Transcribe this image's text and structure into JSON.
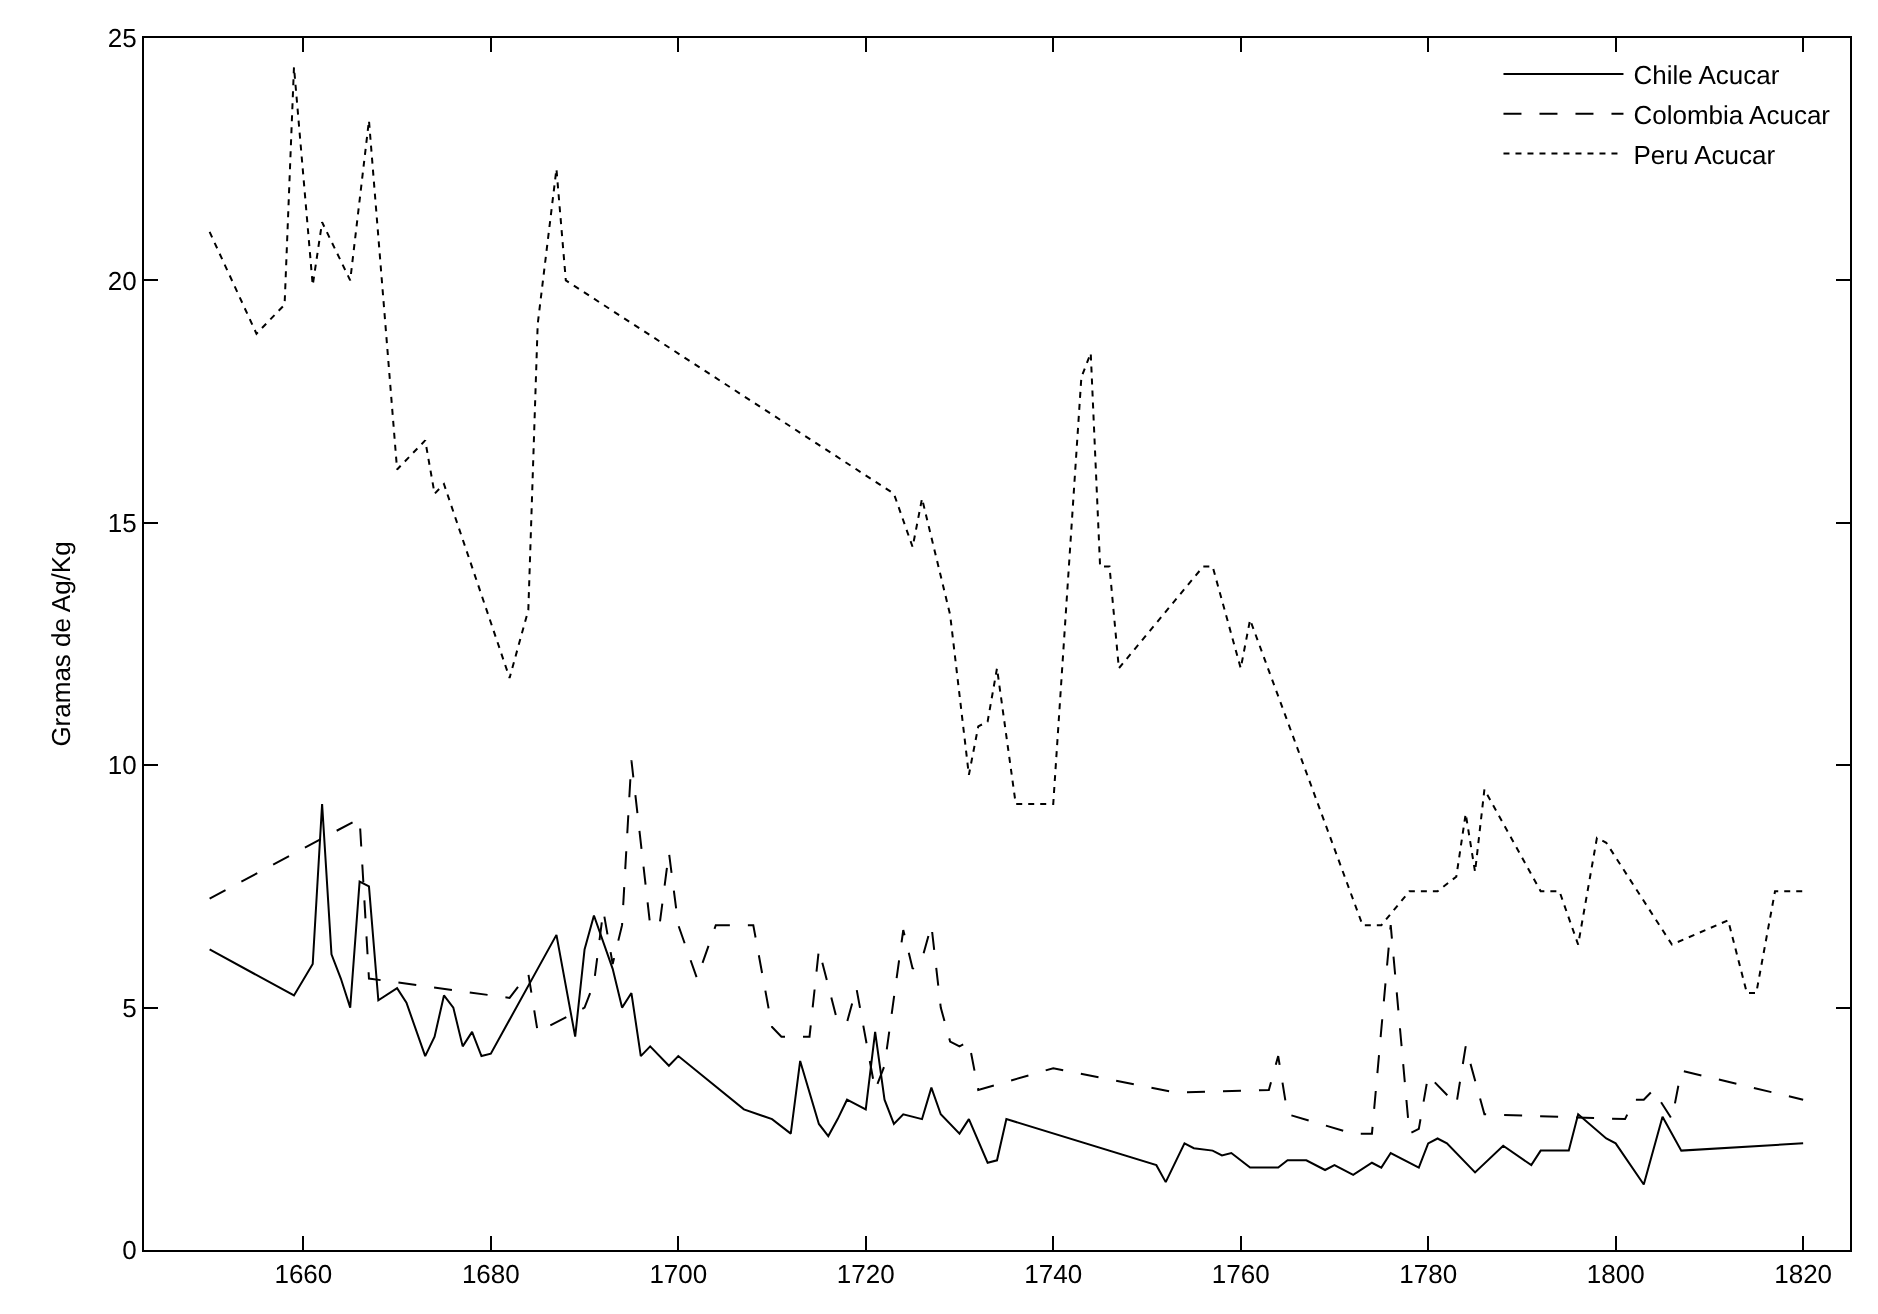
{
  "chart_data": {
    "type": "line",
    "ylabel": "Gramas de Ag/Kg",
    "xlim": [
      1643,
      1825
    ],
    "xticks": [
      1660,
      1680,
      1700,
      1720,
      1740,
      1760,
      1780,
      1800,
      1820
    ],
    "ylim": [
      0,
      25
    ],
    "yticks": [
      0,
      5,
      10,
      15,
      20,
      25
    ],
    "grid": false,
    "legend": "top right",
    "marker": "none",
    "series": [
      {
        "name": "Chile Acucar",
        "color": "#000000",
        "line_style": "solid",
        "x": [
          1650,
          1659,
          1661,
          1662,
          1663,
          1664,
          1665,
          1666,
          1667,
          1668,
          1670,
          1671,
          1673,
          1674,
          1675,
          1676,
          1677,
          1678,
          1679,
          1680,
          1687,
          1689,
          1690,
          1691,
          1693,
          1694,
          1695,
          1696,
          1697,
          1699,
          1700,
          1707,
          1710,
          1712,
          1713,
          1715,
          1716,
          1717,
          1718,
          1720,
          1721,
          1722,
          1723,
          1724,
          1726,
          1727,
          1728,
          1730,
          1731,
          1733,
          1734,
          1735,
          1751,
          1752,
          1754,
          1755,
          1757,
          1758,
          1759,
          1761,
          1764,
          1765,
          1767,
          1769,
          1770,
          1772,
          1774,
          1775,
          1776,
          1779,
          1780,
          1781,
          1782,
          1785,
          1788,
          1791,
          1792,
          1795,
          1796,
          1799,
          1800,
          1803,
          1805,
          1807,
          1820
        ],
        "values": [
          6.2,
          5.25,
          5.9,
          9.2,
          6.1,
          5.6,
          5.0,
          7.6,
          7.5,
          5.15,
          5.4,
          5.1,
          4.0,
          4.4,
          5.25,
          5.0,
          4.2,
          4.5,
          4.0,
          4.05,
          6.5,
          4.4,
          6.2,
          6.9,
          5.8,
          5.0,
          5.3,
          4.0,
          4.2,
          3.8,
          4.0,
          2.9,
          2.7,
          2.4,
          3.9,
          2.6,
          2.35,
          2.7,
          3.1,
          2.9,
          4.5,
          3.1,
          2.6,
          2.8,
          2.7,
          3.35,
          2.8,
          2.4,
          2.7,
          1.8,
          1.85,
          2.7,
          1.75,
          1.4,
          2.2,
          2.1,
          2.05,
          1.95,
          2.0,
          1.7,
          1.7,
          1.85,
          1.85,
          1.65,
          1.75,
          1.55,
          1.8,
          1.7,
          2.0,
          1.7,
          2.2,
          2.3,
          2.2,
          1.6,
          2.15,
          1.75,
          2.05,
          2.05,
          2.8,
          2.3,
          2.2,
          1.35,
          2.75,
          2.05,
          2.2
        ]
      },
      {
        "name": "Colombia Acucar",
        "color": "#000000",
        "line_style": "dashed",
        "x": [
          1650,
          1666,
          1667,
          1682,
          1684,
          1685,
          1690,
          1691,
          1692,
          1693,
          1694,
          1695,
          1697,
          1698,
          1699,
          1700,
          1702,
          1704,
          1708,
          1710,
          1711,
          1714,
          1715,
          1717,
          1718,
          1719,
          1721,
          1722,
          1724,
          1725,
          1726,
          1727,
          1728,
          1729,
          1730,
          1731,
          1732,
          1740,
          1753,
          1763,
          1764,
          1765,
          1772,
          1774,
          1776,
          1778,
          1779,
          1780,
          1783,
          1784,
          1786,
          1801,
          1802,
          1803,
          1804,
          1806,
          1807,
          1820
        ],
        "values": [
          7.25,
          8.9,
          5.6,
          5.2,
          5.7,
          4.5,
          5.0,
          5.5,
          7.0,
          5.9,
          6.7,
          10.1,
          6.7,
          6.7,
          8.2,
          6.7,
          5.6,
          6.7,
          6.7,
          4.6,
          4.4,
          4.4,
          6.2,
          4.7,
          4.7,
          5.4,
          3.3,
          3.8,
          6.6,
          5.8,
          6.0,
          6.7,
          5.0,
          4.3,
          4.2,
          4.3,
          3.3,
          3.75,
          3.25,
          3.3,
          4.0,
          2.8,
          2.4,
          2.4,
          6.7,
          2.4,
          2.5,
          3.6,
          3.0,
          4.2,
          2.8,
          2.7,
          3.1,
          3.1,
          3.3,
          2.7,
          3.7,
          3.1
        ]
      },
      {
        "name": "Peru Acucar",
        "color": "#000000",
        "line_style": "dotted",
        "x": [
          1650,
          1655,
          1658,
          1659,
          1661,
          1662,
          1665,
          1667,
          1670,
          1673,
          1674,
          1675,
          1682,
          1684,
          1685,
          1687,
          1688,
          1723,
          1725,
          1726,
          1729,
          1731,
          1732,
          1733,
          1734,
          1736,
          1740,
          1743,
          1744,
          1745,
          1746,
          1747,
          1756,
          1757,
          1760,
          1761,
          1773,
          1775,
          1778,
          1781,
          1783,
          1784,
          1785,
          1786,
          1792,
          1794,
          1796,
          1798,
          1799,
          1806,
          1812,
          1814,
          1815,
          1817,
          1820
        ],
        "values": [
          21.0,
          18.9,
          19.5,
          24.4,
          19.9,
          21.2,
          20.0,
          23.3,
          16.1,
          16.7,
          15.6,
          15.8,
          11.8,
          13.2,
          19.1,
          22.3,
          20.0,
          15.6,
          14.5,
          15.5,
          13.1,
          9.8,
          10.8,
          10.9,
          12.0,
          9.2,
          9.2,
          18.0,
          18.5,
          14.1,
          14.1,
          12.0,
          14.1,
          14.1,
          12.0,
          13.0,
          6.7,
          6.7,
          7.4,
          7.4,
          7.7,
          9.0,
          7.8,
          9.5,
          7.4,
          7.4,
          6.3,
          8.5,
          8.4,
          6.3,
          6.8,
          5.3,
          5.3,
          7.4,
          7.4
        ]
      }
    ]
  }
}
